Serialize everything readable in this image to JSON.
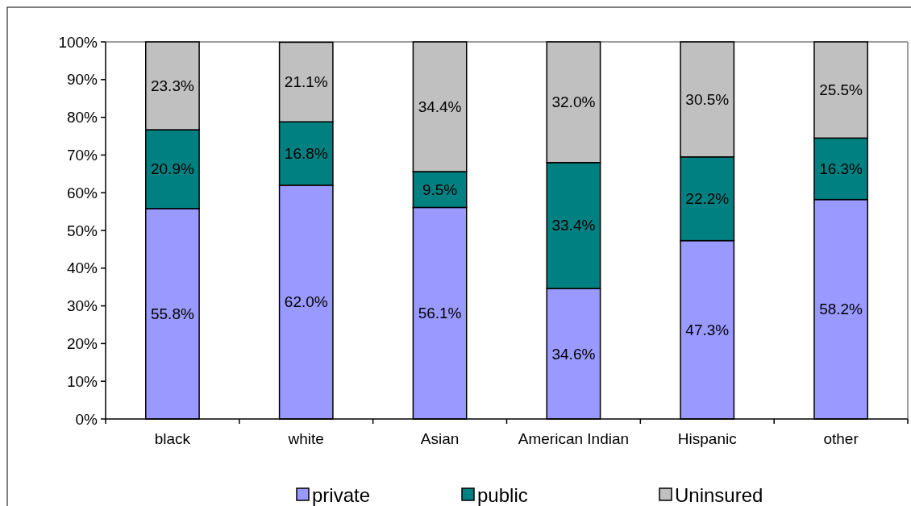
{
  "chart_data": {
    "type": "bar",
    "stacked": true,
    "categories": [
      "black",
      "white",
      "Asian",
      "American Indian",
      "Hispanic",
      "other"
    ],
    "series": [
      {
        "name": "private",
        "color": "#9999ff",
        "values": [
          55.8,
          62.0,
          56.1,
          34.6,
          47.3,
          58.2
        ],
        "value_labels": [
          "55.8%",
          "62.0%",
          "56.1%",
          "34.6%",
          "47.3%",
          "58.2%"
        ]
      },
      {
        "name": "public",
        "color": "#008080",
        "values": [
          20.9,
          16.8,
          9.5,
          33.4,
          22.2,
          16.3
        ],
        "value_labels": [
          "20.9%",
          "16.8%",
          "9.5%",
          "33.4%",
          "22.2%",
          "16.3%"
        ]
      },
      {
        "name": "Uninsured",
        "color": "#c0c0c0",
        "values": [
          23.3,
          21.1,
          34.4,
          32.0,
          30.5,
          25.5
        ],
        "value_labels": [
          "23.3%",
          "21.1%",
          "34.4%",
          "32.0%",
          "30.5%",
          "25.5%"
        ]
      }
    ],
    "ylim": [
      0,
      100
    ],
    "yticks": [
      {
        "value": 0,
        "label": "0%"
      },
      {
        "value": 10,
        "label": "10%"
      },
      {
        "value": 20,
        "label": "20%"
      },
      {
        "value": 30,
        "label": "30%"
      },
      {
        "value": 40,
        "label": "40%"
      },
      {
        "value": 50,
        "label": "50%"
      },
      {
        "value": 60,
        "label": "60%"
      },
      {
        "value": 70,
        "label": "70%"
      },
      {
        "value": 80,
        "label": "80%"
      },
      {
        "value": 90,
        "label": "90%"
      },
      {
        "value": 100,
        "label": "100%"
      }
    ],
    "grid": false,
    "legend": "bottom"
  }
}
